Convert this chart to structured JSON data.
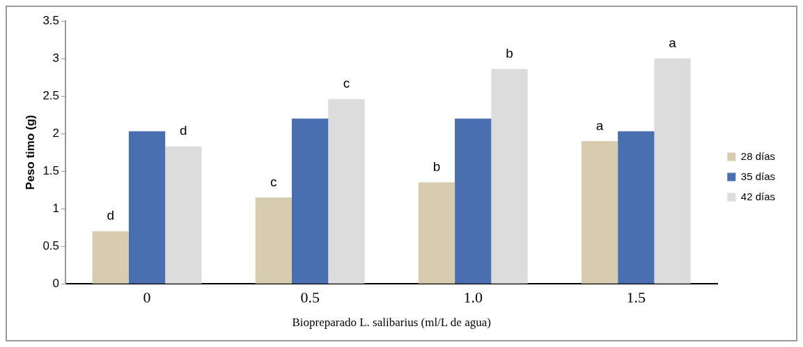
{
  "chart_data": {
    "type": "bar",
    "xlabel": "Biopreparado L. salibarius (ml/L de agua)",
    "ylabel": "Peso timo (g)",
    "categories": [
      "0",
      "0.5",
      "1.0",
      "1.5"
    ],
    "series": [
      {
        "name": "28 días",
        "color": "#d8ccae",
        "values": [
          0.7,
          1.15,
          1.35,
          1.9
        ],
        "value_labels": [
          "d",
          "c",
          "b",
          "a"
        ]
      },
      {
        "name": "35 días",
        "color": "#4a6fb0",
        "values": [
          2.03,
          2.2,
          2.2,
          2.03
        ]
      },
      {
        "name": "42 días",
        "color": "#dcdcdc",
        "values": [
          1.83,
          2.46,
          2.86,
          3.0
        ],
        "value_labels": [
          "d",
          "c",
          "b",
          "a"
        ]
      }
    ],
    "ylim": [
      0,
      3.5
    ],
    "yticks": [
      0,
      0.5,
      1,
      1.5,
      2,
      2.5,
      3,
      3.5
    ],
    "grid": false,
    "legend": "right"
  }
}
